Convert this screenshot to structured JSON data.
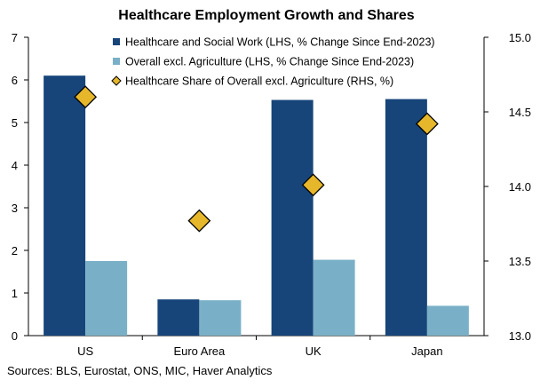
{
  "chart_data": {
    "type": "bar",
    "title": "Healthcare Employment Growth and Shares",
    "categories": [
      "US",
      "Euro Area",
      "UK",
      "Japan"
    ],
    "series": [
      {
        "name": "Healthcare and Social Work (LHS, % Change Since End-2023)",
        "axis": "left",
        "kind": "bar",
        "color": "#17457a",
        "values": [
          6.1,
          0.85,
          5.53,
          5.55
        ]
      },
      {
        "name": "Overall excl. Agriculture (LHS, % Change Since End-2023)",
        "axis": "left",
        "kind": "bar",
        "color": "#7ab0c7",
        "values": [
          1.75,
          0.83,
          1.78,
          0.7
        ]
      },
      {
        "name": "Healthcare Share of Overall excl. Agriculture (RHS, %)",
        "axis": "right",
        "kind": "marker",
        "color": "#e6b72a",
        "values": [
          14.6,
          13.77,
          14.01,
          14.42
        ]
      }
    ],
    "y_left": {
      "min": 0,
      "max": 7,
      "ticks": [
        "0",
        "1",
        "2",
        "3",
        "4",
        "5",
        "6",
        "7"
      ]
    },
    "y_right": {
      "min": 13.0,
      "max": 15.0,
      "ticks": [
        "13.0",
        "13.5",
        "14.0",
        "14.5",
        "15.0"
      ]
    },
    "legend_position": "top-center",
    "grid": false
  },
  "source_note": "Sources: BLS, Eurostat, ONS, MIC, Haver Analytics"
}
